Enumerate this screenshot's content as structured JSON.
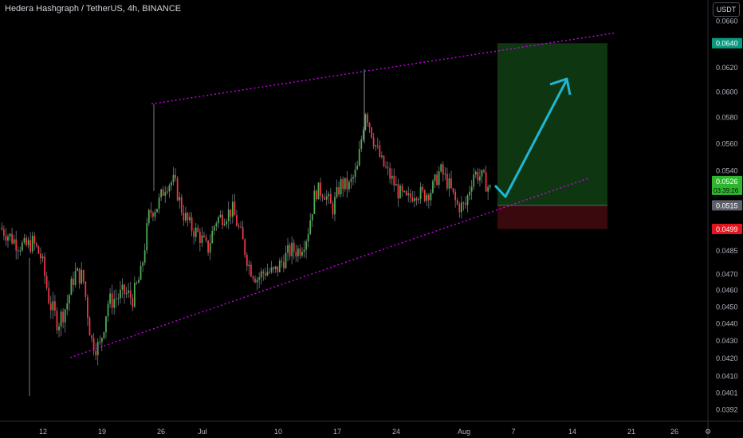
{
  "header": {
    "title": "Hedera Hashgraph / TetherUS, 4h, BINANCE",
    "unit_button": "USDT"
  },
  "colors": {
    "background": "#000000",
    "up_candle": "#4caf50",
    "down_candle": "#f23645",
    "wick": "#787b86",
    "channel_line": "#d500f9",
    "arrow": "#1fb7d4",
    "target_zone": "#0f3a12",
    "stop_zone": "#3d0a0f",
    "price_tag_target": "#089981",
    "price_tag_current": "#2db62d",
    "price_tag_entry": "#5d606b",
    "price_tag_stop": "#e3141e"
  },
  "chart_data": {
    "type": "candlestick",
    "title": "Hedera Hashgraph / TetherUS, 4h, BINANCE",
    "ylabel": "USDT",
    "y_scale": "log",
    "ylim": [
      0.0389,
      0.0666
    ],
    "y_ticks": [
      "0.0660",
      "0.0620",
      "0.0600",
      "0.0580",
      "0.0560",
      "0.0540",
      "0.0485",
      "0.0470",
      "0.0460",
      "0.0450",
      "0.0440",
      "0.0430",
      "0.0420",
      "0.0410",
      "0.0401",
      "0.0392"
    ],
    "x_ticks": [
      "12",
      "19",
      "26",
      "Jul",
      "10",
      "17",
      "24",
      "Aug",
      "7",
      "14",
      "21",
      "26"
    ],
    "price_labels": {
      "target": "0.0640",
      "current": "0.0526",
      "countdown": "03:39:26",
      "entry": "0.0515",
      "stop": "0.0499"
    },
    "position": {
      "type": "long",
      "entry": 0.0515,
      "target": 0.064,
      "stop": 0.0499
    },
    "channel": {
      "upper": {
        "start": [
          0.059
        ],
        "end": [
          0.0649
        ]
      },
      "lower": {
        "start": [
          0.042
        ],
        "end": [
          0.0534
        ]
      }
    },
    "price_path": [
      [
        0.0497,
        0.05
      ],
      [
        0.0488,
        0.0495
      ],
      [
        0.0482,
        0.049
      ],
      [
        0.0488,
        0.0487
      ],
      [
        0.0486,
        0.049
      ],
      [
        0.0484,
        0.048
      ],
      [
        0.043,
        0.0452
      ],
      [
        0.0441,
        0.044
      ],
      [
        0.0444,
        0.045
      ],
      [
        0.0468,
        0.047
      ],
      [
        0.047,
        0.0468
      ],
      [
        0.0442,
        0.043
      ],
      [
        0.0422,
        0.0425
      ],
      [
        0.0428,
        0.0452
      ],
      [
        0.0453,
        0.0455
      ],
      [
        0.046,
        0.0458
      ],
      [
        0.0454,
        0.0455
      ],
      [
        0.046,
        0.047
      ],
      [
        0.0495,
        0.051
      ],
      [
        0.0522,
        0.0515
      ],
      [
        0.0525,
        0.053
      ],
      [
        0.054,
        0.0532
      ],
      [
        0.052,
        0.051
      ],
      [
        0.0512,
        0.05
      ],
      [
        0.05,
        0.0495
      ],
      [
        0.0482,
        0.0485
      ],
      [
        0.0492,
        0.0505
      ],
      [
        0.051,
        0.0508
      ],
      [
        0.0515,
        0.0512
      ],
      [
        0.0505,
        0.0495
      ],
      [
        0.0484,
        0.0475
      ],
      [
        0.0468,
        0.0467
      ],
      [
        0.047,
        0.0472
      ],
      [
        0.0471,
        0.047
      ],
      [
        0.0472,
        0.0478
      ],
      [
        0.0484,
        0.0485
      ],
      [
        0.048,
        0.0485
      ],
      [
        0.0486,
        0.0495
      ],
      [
        0.0512,
        0.0525
      ],
      [
        0.053,
        0.0525
      ],
      [
        0.052,
        0.0512
      ],
      [
        0.0518,
        0.053
      ],
      [
        0.0522,
        0.0528
      ],
      [
        0.0525,
        0.054
      ],
      [
        0.056,
        0.0585
      ],
      [
        0.057,
        0.0562
      ],
      [
        0.0555,
        0.0545
      ],
      [
        0.054,
        0.0535
      ],
      [
        0.053,
        0.0524
      ],
      [
        0.0522,
        0.0518
      ],
      [
        0.0519,
        0.0525
      ],
      [
        0.0528,
        0.0522
      ],
      [
        0.0518,
        0.0526
      ],
      [
        0.0532,
        0.054
      ],
      [
        0.0538,
        0.053
      ],
      [
        0.0528,
        0.0515
      ],
      [
        0.0512,
        0.0514
      ],
      [
        0.052,
        0.0538
      ],
      [
        0.0538,
        0.0535
      ],
      [
        0.0532,
        0.0526
      ]
    ]
  }
}
